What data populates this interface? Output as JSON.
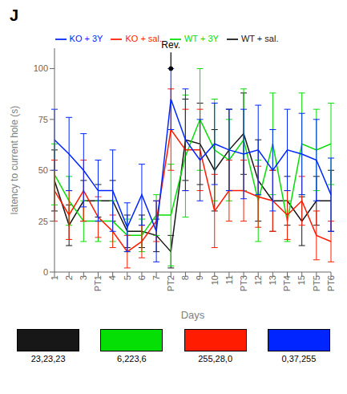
{
  "chart_data": {
    "type": "line",
    "title": "J",
    "xlabel": "Days",
    "ylabel": "latency to current hole (s)",
    "categories": [
      "1",
      "2",
      "3",
      "PT1",
      "4",
      "5",
      "6",
      "7",
      "PT2",
      "8",
      "9",
      "10",
      "11",
      "PT3",
      "12",
      "13",
      "PT4",
      "15",
      "PT5",
      "PT6"
    ],
    "series": [
      {
        "name": "WT + sal.",
        "color": "#171717",
        "values": [
          45,
          23,
          35,
          35,
          35,
          20,
          20,
          18,
          10,
          65,
          63,
          50,
          60,
          68,
          45,
          35,
          35,
          25,
          35,
          35
        ],
        "errors": [
          15,
          10,
          10,
          8,
          10,
          8,
          8,
          8,
          8,
          20,
          20,
          20,
          20,
          20,
          20,
          15,
          12,
          12,
          12,
          15
        ]
      },
      {
        "name": "WT + 3Y",
        "color": "#06DF06",
        "values": [
          48,
          35,
          25,
          25,
          25,
          18,
          18,
          28,
          28,
          57,
          75,
          60,
          55,
          65,
          35,
          63,
          25,
          63,
          60,
          63
        ],
        "errors": [
          15,
          12,
          10,
          10,
          10,
          8,
          8,
          10,
          25,
          30,
          25,
          25,
          20,
          25,
          20,
          25,
          10,
          25,
          20,
          20
        ]
      },
      {
        "name": "KO + sal.",
        "color": "#FF1C00",
        "values": [
          40,
          28,
          40,
          27,
          20,
          10,
          15,
          25,
          70,
          60,
          60,
          30,
          40,
          40,
          37,
          35,
          28,
          35,
          18,
          15
        ],
        "errors": [
          15,
          12,
          15,
          10,
          8,
          8,
          8,
          10,
          20,
          20,
          20,
          18,
          15,
          15,
          15,
          15,
          12,
          12,
          12,
          10
        ]
      },
      {
        "name": "KO + 3Y",
        "color": "#0025FF",
        "values": [
          65,
          58,
          50,
          40,
          40,
          22,
          38,
          20,
          85,
          65,
          55,
          63,
          60,
          58,
          60,
          50,
          60,
          58,
          55,
          38
        ],
        "errors": [
          15,
          18,
          18,
          15,
          20,
          12,
          15,
          15,
          15,
          25,
          20,
          20,
          20,
          22,
          22,
          20,
          20,
          20,
          20,
          18
        ]
      }
    ],
    "ylim": [
      0,
      110
    ],
    "yticks": [
      0,
      25,
      50,
      75,
      100
    ],
    "legend": "top",
    "annotations": [
      {
        "text": "Rev.",
        "x": "PT2",
        "y": 100,
        "text_y": 108
      }
    ],
    "swatches": [
      {
        "label": "23,23,23",
        "color": "#171717"
      },
      {
        "label": "6,223,6",
        "color": "#06DF06"
      },
      {
        "label": "255,28,0",
        "color": "#FF1C00"
      },
      {
        "label": "0,37,255",
        "color": "#0025FF"
      }
    ]
  }
}
